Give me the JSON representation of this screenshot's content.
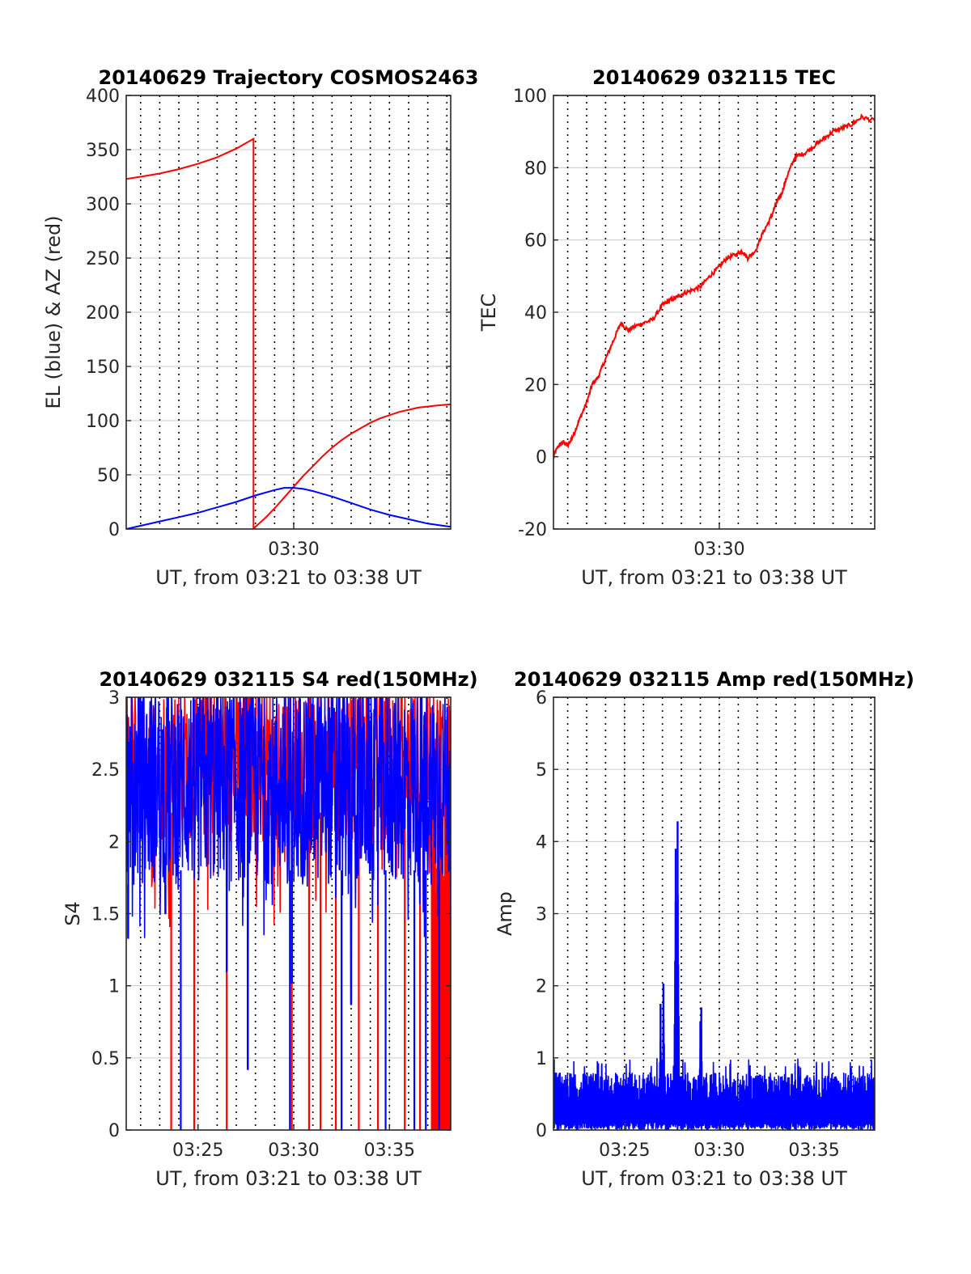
{
  "colors": {
    "el": "#0000ff",
    "az": "#ff0000",
    "tec": "#ff0000",
    "s4_red": "#ff0000",
    "s4_blue": "#0000ff",
    "amp": "#0000ff",
    "grid": "#cccccc",
    "axis": "#262626"
  },
  "chart_data": [
    {
      "type": "line",
      "title": "20140629 Trajectory COSMOS2463",
      "xlabel": "UT, from 03:21 to 03:38 UT",
      "ylabel": "EL (blue) & AZ (red)",
      "xlim": [
        201.25,
        218.2
      ],
      "ylim": [
        0,
        400
      ],
      "yticks": [
        0,
        50,
        100,
        150,
        200,
        250,
        300,
        350,
        400
      ],
      "xticks": [
        {
          "value": 210,
          "label": "03:30"
        }
      ],
      "grid": true,
      "series": [
        {
          "color": "#ff0000",
          "x": [
            201.25,
            202,
            203,
            204,
            205,
            206,
            207,
            207.9,
            207.9,
            208,
            208.5,
            209,
            209.5,
            210,
            210.5,
            211,
            211.5,
            212,
            212.5,
            213,
            213.5,
            214,
            214.5,
            215,
            215.5,
            216,
            216.5,
            217,
            217.5,
            218.2
          ],
          "y": [
            323,
            325,
            328,
            332,
            337,
            343,
            351,
            360,
            0,
            2,
            10,
            19,
            29,
            39,
            49,
            58,
            67,
            75,
            82,
            88,
            93,
            98,
            102,
            105,
            108,
            110,
            112,
            113,
            114,
            115
          ]
        },
        {
          "color": "#0000ff",
          "x": [
            201.25,
            202,
            203,
            204,
            205,
            206,
            207,
            208,
            209,
            209.5,
            210,
            210.5,
            211,
            212,
            213,
            214,
            215,
            216,
            217,
            218.2
          ],
          "y": [
            0,
            3,
            7,
            11,
            15,
            20,
            25,
            31,
            36,
            38,
            38,
            37,
            35,
            30,
            24,
            18,
            13,
            9,
            5,
            2
          ]
        }
      ]
    },
    {
      "type": "line",
      "title": "20140629 032115 TEC",
      "xlabel": "UT, from 03:21 to 03:38 UT",
      "ylabel": "TEC",
      "xlim": [
        201.25,
        218.2
      ],
      "ylim": [
        -20,
        100
      ],
      "yticks": [
        -20,
        0,
        20,
        40,
        60,
        80,
        100
      ],
      "xticks": [
        {
          "value": 210,
          "label": "03:30"
        }
      ],
      "grid": true,
      "series": [
        {
          "color": "#ff0000",
          "x": [
            201.25,
            201.5,
            201.8,
            202.0,
            202.3,
            202.6,
            203.0,
            203.3,
            203.6,
            204.0,
            204.4,
            204.8,
            205.2,
            205.5,
            206.0,
            206.5,
            207.0,
            207.3,
            207.7,
            208.0,
            208.5,
            209.0,
            209.5,
            209.9,
            210.4,
            210.9,
            211.2,
            211.5,
            211.9,
            212.3,
            212.7,
            213.0,
            213.3,
            213.6,
            214.0,
            214.5,
            215.0,
            215.5,
            216.0,
            216.5,
            217.0,
            217.5,
            218.2
          ],
          "y": [
            0,
            3,
            4,
            3,
            6,
            10,
            15,
            20,
            22,
            27,
            32,
            37,
            35,
            36,
            37,
            38,
            42,
            43,
            44,
            45,
            46,
            47,
            50,
            52,
            55,
            56,
            57,
            55,
            57,
            62,
            66,
            70,
            73,
            78,
            83,
            84,
            86,
            88,
            90,
            91,
            92,
            94,
            93
          ]
        }
      ]
    },
    {
      "type": "line",
      "title": "20140629 032115 S4 red(150MHz)",
      "xlabel": "UT, from 03:21 to 03:38 UT",
      "ylabel": "S4",
      "xlim": [
        201.25,
        218.2
      ],
      "ylim": [
        0,
        3
      ],
      "yticks": [
        0,
        0.5,
        1,
        1.5,
        2,
        2.5,
        3
      ],
      "xticks": [
        {
          "value": 205,
          "label": "03:25"
        },
        {
          "value": 210,
          "label": "03:30"
        },
        {
          "value": 215,
          "label": "03:35"
        }
      ],
      "grid": true,
      "series": [
        {
          "color": "#ff0000",
          "note": "dense noisy red trace, drawn as 2.0–3.0 noise with vertical drops to 0",
          "drops": [
            203.6,
            204.8,
            206.5,
            209.9,
            210.8,
            211.4,
            212.2,
            213.4,
            214.4,
            215.8,
            216.6,
            217.3
          ]
        },
        {
          "color": "#0000ff",
          "dips": [
            {
              "x": 201.35,
              "y": 1.33
            },
            {
              "x": 203.3,
              "y": 1.5
            },
            {
              "x": 206.5,
              "y": 1.1
            },
            {
              "x": 207.6,
              "y": 0.42
            },
            {
              "x": 209.9,
              "y": 1.02
            },
            {
              "x": 213.0,
              "y": 0.87
            }
          ],
          "drops": [
            204.1,
            209.8,
            212.5,
            214.8,
            216.3,
            216.9,
            217.6
          ]
        }
      ]
    },
    {
      "type": "line",
      "title": "20140629 032115 Amp red(150MHz)",
      "xlabel": "UT, from 03:21 to 03:38 UT",
      "ylabel": "Amp",
      "xlim": [
        201.25,
        218.2
      ],
      "ylim": [
        0,
        6
      ],
      "yticks": [
        0,
        1,
        2,
        3,
        4,
        5,
        6
      ],
      "xticks": [
        {
          "value": 205,
          "label": "03:25"
        },
        {
          "value": 210,
          "label": "03:30"
        },
        {
          "value": 215,
          "label": "03:35"
        }
      ],
      "grid": true,
      "series": [
        {
          "color": "#0000ff",
          "baseline": [
            0,
            0.8
          ],
          "peaks": [
            {
              "x": 206.9,
              "y": 1.75
            },
            {
              "x": 207.05,
              "y": 2.03
            },
            {
              "x": 207.7,
              "y": 3.9
            },
            {
              "x": 207.8,
              "y": 4.28
            },
            {
              "x": 209.0,
              "y": 1.5
            },
            {
              "x": 209.05,
              "y": 1.7
            }
          ]
        }
      ]
    }
  ]
}
